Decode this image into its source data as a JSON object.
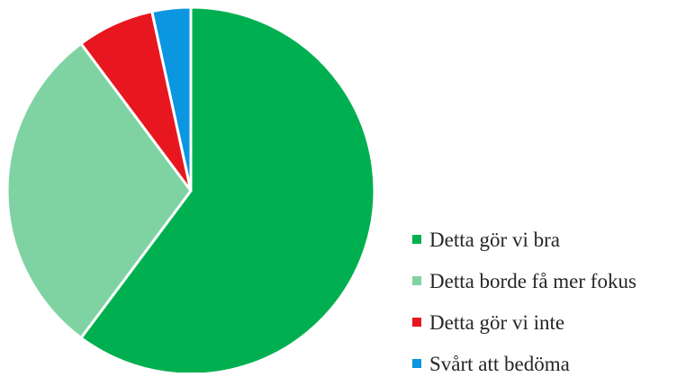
{
  "chart_data": {
    "type": "pie",
    "title": "",
    "categories": [
      "Detta gör vi bra",
      "Detta borde få mer fokus",
      "Detta gör vi inte",
      "Svårt att bedöma"
    ],
    "values": [
      60.2,
      29.6,
      6.8,
      3.4
    ],
    "colors": [
      "#00b050",
      "#7fd3a3",
      "#e8161f",
      "#0a96e0"
    ],
    "legend_position": "bottom-right",
    "start_angle_deg": 0,
    "direction": "clockwise",
    "slice_border_color": "#ffffff"
  }
}
